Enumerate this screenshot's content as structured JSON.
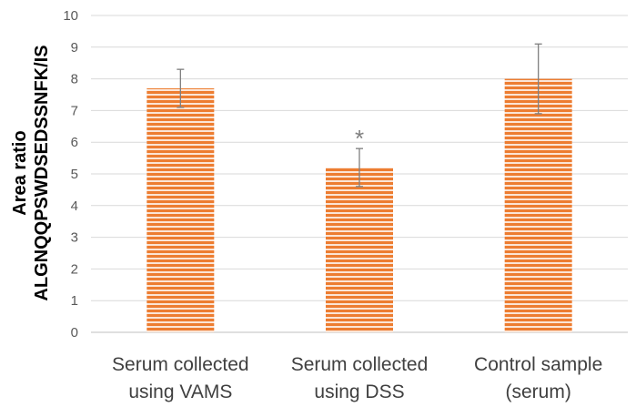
{
  "chart_data": {
    "type": "bar",
    "categories": [
      [
        "Serum collected",
        "using VAMS"
      ],
      [
        "Serum collected",
        "using DSS"
      ],
      [
        "Control sample",
        "(serum)"
      ]
    ],
    "values": [
      7.7,
      5.2,
      8.0
    ],
    "error": [
      0.6,
      0.6,
      1.1
    ],
    "annotations": [
      "",
      "*",
      ""
    ],
    "ylabel": [
      "Area ratio",
      "ALGNQQPSWDSEDSSNFK/IS"
    ],
    "ylim": [
      0,
      10
    ],
    "yticks": [
      "0",
      "1",
      "2",
      "3",
      "4",
      "5",
      "6",
      "7",
      "8",
      "9",
      "10"
    ],
    "grid": true,
    "legend": "none",
    "colors": {
      "bar": "#ed7d31",
      "bar_stripe": "#fbe5d6",
      "grid": "#d9d9d9",
      "axis": "#bfbfbf",
      "error": "#7f7f7f"
    }
  }
}
